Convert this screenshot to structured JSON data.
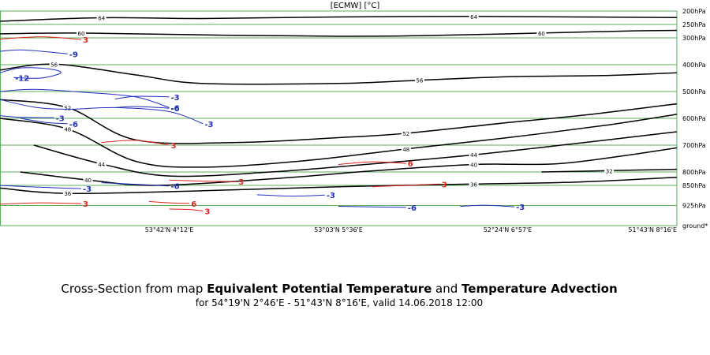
{
  "chart_data": {
    "type": "cross-section",
    "title": "[ECMW] [°C]",
    "caption": {
      "prefix": "Cross-Section from map ",
      "field1": "Equivalent Potential Temperature",
      "mid": " and ",
      "field2": "Temperature Advection",
      "line2": "for 54°19'N 2°46'E - 51°43'N 8°16'E, valid 14.06.2018 12:00"
    },
    "pressure_levels": [
      {
        "label": "200hPa",
        "p": 200
      },
      {
        "label": "250hPa",
        "p": 250
      },
      {
        "label": "300hPa",
        "p": 300
      },
      {
        "label": "400hPa",
        "p": 400
      },
      {
        "label": "500hPa",
        "p": 500
      },
      {
        "label": "600hPa",
        "p": 600
      },
      {
        "label": "700hPa",
        "p": 700
      },
      {
        "label": "800hPa",
        "p": 800
      },
      {
        "label": "850hPa",
        "p": 850
      },
      {
        "label": "925hPa",
        "p": 925
      },
      {
        "label": "ground*",
        "p": 1000
      }
    ],
    "x_ticks": [
      {
        "label": "53°42'N 4°12'E",
        "frac": 0.25
      },
      {
        "label": "53°03'N 5°36'E",
        "frac": 0.5
      },
      {
        "label": "52°24'N 6°57'E",
        "frac": 0.75
      },
      {
        "label": "51°43'N 8°16'E",
        "frac": 1.0
      }
    ],
    "theta_e_contours": [
      {
        "value": 64,
        "label": "64",
        "points": [
          [
            0,
            238
          ],
          [
            0.15,
            225
          ],
          [
            0.3,
            228
          ],
          [
            0.5,
            222
          ],
          [
            0.7,
            220
          ],
          [
            0.85,
            222
          ],
          [
            1,
            224
          ]
        ]
      },
      {
        "value": 60,
        "label": "60",
        "points": [
          [
            0,
            285
          ],
          [
            0.12,
            282
          ],
          [
            0.33,
            290
          ],
          [
            0.5,
            294
          ],
          [
            0.62,
            292
          ],
          [
            0.8,
            282
          ],
          [
            0.93,
            274
          ],
          [
            1,
            272
          ]
        ]
      },
      {
        "value": 56,
        "label": "56",
        "points": [
          [
            0,
            420
          ],
          [
            0.08,
            398
          ],
          [
            0.2,
            438
          ],
          [
            0.3,
            470
          ],
          [
            0.5,
            470
          ],
          [
            0.62,
            458
          ],
          [
            0.75,
            445
          ],
          [
            0.9,
            440
          ],
          [
            1,
            430
          ]
        ]
      },
      {
        "value": 52,
        "label": "52",
        "points": [
          [
            0,
            530
          ],
          [
            0.1,
            560
          ],
          [
            0.2,
            680
          ],
          [
            0.35,
            690
          ],
          [
            0.5,
            672
          ],
          [
            0.6,
            656
          ],
          [
            0.75,
            616
          ],
          [
            0.87,
            586
          ],
          [
            1,
            546
          ]
        ]
      },
      {
        "value": 48,
        "label": "48",
        "points": [
          [
            0,
            600
          ],
          [
            0.1,
            640
          ],
          [
            0.2,
            760
          ],
          [
            0.3,
            782
          ],
          [
            0.45,
            758
          ],
          [
            0.6,
            714
          ],
          [
            0.75,
            672
          ],
          [
            0.9,
            624
          ],
          [
            1,
            585
          ]
        ]
      },
      {
        "value": 44,
        "label": "44",
        "points": [
          [
            0.05,
            700
          ],
          [
            0.15,
            770
          ],
          [
            0.25,
            815
          ],
          [
            0.4,
            800
          ],
          [
            0.55,
            770
          ],
          [
            0.7,
            736
          ],
          [
            0.85,
            694
          ],
          [
            1,
            650
          ]
        ]
      },
      {
        "value": 40,
        "label": "40",
        "points": [
          [
            0.03,
            800
          ],
          [
            0.13,
            830
          ],
          [
            0.23,
            850
          ],
          [
            0.4,
            826
          ],
          [
            0.55,
            796
          ],
          [
            0.7,
            772
          ],
          [
            0.82,
            770
          ],
          [
            0.92,
            740
          ],
          [
            1,
            710
          ]
        ]
      },
      {
        "value": 36,
        "label": "36",
        "points": [
          [
            0,
            860
          ],
          [
            0.1,
            880
          ],
          [
            0.3,
            870
          ],
          [
            0.5,
            855
          ],
          [
            0.7,
            845
          ],
          [
            0.85,
            838
          ],
          [
            1,
            820
          ]
        ]
      },
      {
        "value": 32,
        "label": "32",
        "points": [
          [
            0.8,
            800
          ],
          [
            0.9,
            795
          ],
          [
            1,
            790
          ]
        ]
      }
    ],
    "advection_contours": [
      {
        "value": 3,
        "label": "3",
        "sign": "warm",
        "points": [
          [
            0,
            305
          ],
          [
            0.06,
            296
          ],
          [
            0.12,
            306
          ]
        ]
      },
      {
        "value": -9,
        "label": "-9",
        "sign": "cold",
        "points": [
          [
            0,
            350
          ],
          [
            0.03,
            345
          ],
          [
            0.07,
            352
          ],
          [
            0.1,
            360
          ]
        ]
      },
      {
        "value": -12,
        "label": "-12",
        "sign": "cold",
        "points": [
          [
            0,
            430
          ],
          [
            0.03,
            412
          ],
          [
            0.07,
            415
          ],
          [
            0.09,
            430
          ],
          [
            0.06,
            450
          ],
          [
            0.02,
            448
          ]
        ]
      },
      {
        "value": -6,
        "label": "-6",
        "sign": "cold",
        "points": [
          [
            0,
            500
          ],
          [
            0.05,
            492
          ],
          [
            0.12,
            502
          ],
          [
            0.2,
            520
          ],
          [
            0.25,
            560
          ]
        ]
      },
      {
        "value": -3,
        "label": "-3",
        "sign": "cold",
        "points": [
          [
            0,
            530
          ],
          [
            0.05,
            558
          ],
          [
            0.1,
            566
          ],
          [
            0.17,
            560
          ],
          [
            0.25,
            575
          ],
          [
            0.3,
            620
          ]
        ]
      },
      {
        "value": -3,
        "label": "-3",
        "sign": "cold",
        "points": [
          [
            0,
            590
          ],
          [
            0.03,
            596
          ],
          [
            0.08,
            598
          ]
        ]
      },
      {
        "value": -6,
        "label": "-6",
        "sign": "cold",
        "points": [
          [
            0.03,
            600
          ],
          [
            0.07,
            616
          ],
          [
            0.1,
            620
          ]
        ]
      },
      {
        "value": -3,
        "label": "-3",
        "sign": "cold",
        "points": [
          [
            0.17,
            528
          ],
          [
            0.2,
            518
          ],
          [
            0.25,
            520
          ]
        ]
      },
      {
        "value": -6,
        "label": "-6",
        "sign": "cold",
        "points": [
          [
            0.17,
            560
          ],
          [
            0.2,
            556
          ],
          [
            0.25,
            562
          ]
        ]
      },
      {
        "value": 3,
        "label": "3",
        "sign": "warm",
        "points": [
          [
            0.15,
            690
          ],
          [
            0.2,
            682
          ],
          [
            0.25,
            700
          ]
        ]
      },
      {
        "value": -3,
        "label": "-3",
        "sign": "cold",
        "points": [
          [
            0,
            850
          ],
          [
            0.05,
            856
          ],
          [
            0.12,
            862
          ]
        ]
      },
      {
        "value": -6,
        "label": "-6",
        "sign": "cold",
        "points": [
          [
            0.15,
            840
          ],
          [
            0.2,
            846
          ],
          [
            0.25,
            852
          ]
        ]
      },
      {
        "value": 3,
        "label": "3",
        "sign": "warm",
        "points": [
          [
            0.25,
            830
          ],
          [
            0.3,
            834
          ],
          [
            0.35,
            836
          ]
        ]
      },
      {
        "value": 6,
        "label": "6",
        "sign": "warm",
        "points": [
          [
            0.5,
            772
          ],
          [
            0.55,
            762
          ],
          [
            0.6,
            768
          ]
        ]
      },
      {
        "value": 3,
        "label": "3",
        "sign": "warm",
        "points": [
          [
            0.55,
            855
          ],
          [
            0.6,
            850
          ],
          [
            0.65,
            845
          ]
        ]
      },
      {
        "value": 3,
        "label": "3",
        "sign": "warm",
        "points": [
          [
            0,
            920
          ],
          [
            0.06,
            915
          ],
          [
            0.12,
            918
          ]
        ]
      },
      {
        "value": 6,
        "label": "6",
        "sign": "warm",
        "points": [
          [
            0.22,
            910
          ],
          [
            0.25,
            915
          ],
          [
            0.28,
            917
          ]
        ]
      },
      {
        "value": 3,
        "label": "3",
        "sign": "warm",
        "points": [
          [
            0.25,
            938
          ],
          [
            0.28,
            940
          ],
          [
            0.3,
            945
          ]
        ]
      },
      {
        "value": -3,
        "label": "-3",
        "sign": "cold",
        "points": [
          [
            0.38,
            885
          ],
          [
            0.43,
            890
          ],
          [
            0.48,
            886
          ]
        ]
      },
      {
        "value": -6,
        "label": "-6",
        "sign": "cold",
        "points": [
          [
            0.5,
            928
          ],
          [
            0.55,
            930
          ],
          [
            0.6,
            932
          ]
        ]
      },
      {
        "value": -3,
        "label": "-3",
        "sign": "cold",
        "points": [
          [
            0.68,
            928
          ],
          [
            0.72,
            924
          ],
          [
            0.76,
            930
          ]
        ]
      }
    ]
  }
}
